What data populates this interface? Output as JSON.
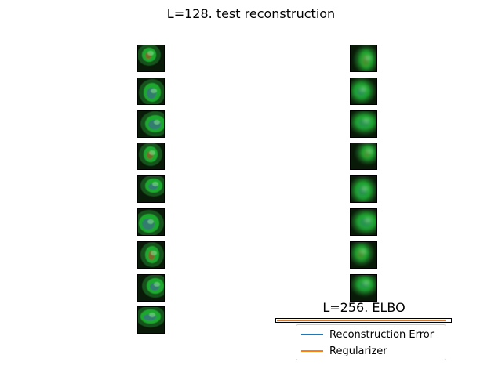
{
  "figure": {
    "title": "L=128. test reconstruction"
  },
  "panels": {
    "original": {
      "count": 9
    },
    "reconstruction": {
      "count": 8
    }
  },
  "chart_data": {
    "type": "line",
    "title": "L=256. ELBO",
    "series": [
      {
        "name": "Reconstruction Error",
        "color": "#1f77b4"
      },
      {
        "name": "Regularizer",
        "color": "#ff7f0e"
      }
    ],
    "legend": "upper-center",
    "grid": false
  },
  "colors": {
    "cell_green": "#1fa82e",
    "cell_dark": "#0a1a08",
    "nucleus_red": "#a0502c",
    "nucleus_blue": "#3a6a8c"
  }
}
